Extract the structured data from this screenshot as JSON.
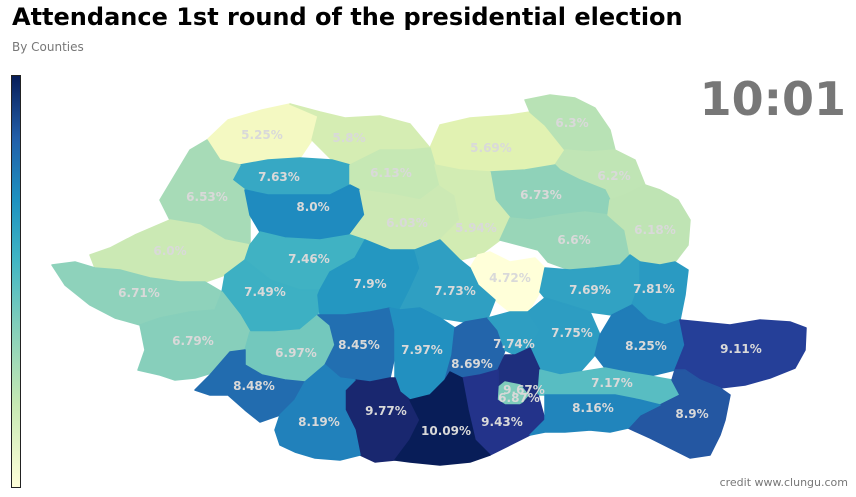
{
  "header": {
    "title": "Attendance 1st round of the presidential election",
    "subtitle": "By Counties",
    "time": "10:01"
  },
  "footer": {
    "credit": "credit www.clungu.com"
  },
  "legend": {
    "colormap": "YlGnBu",
    "colors": [
      "#ffffd9",
      "#c7e9b4",
      "#7fcdbb",
      "#41b6c4",
      "#1d91c0",
      "#225ea8",
      "#081d58"
    ]
  },
  "map_data": {
    "region": "Romania",
    "unit": "%",
    "counties": [
      {
        "value": "5.25%",
        "color": "#f4f9c2"
      },
      {
        "value": "5.8%",
        "color": "#d5edb3"
      },
      {
        "value": "5.69%",
        "color": "#e1f2b2"
      },
      {
        "value": "6.3%",
        "color": "#b8e2b5"
      },
      {
        "value": "6.2%",
        "color": "#c0e5b5"
      },
      {
        "value": "7.63%",
        "color": "#37a8c4"
      },
      {
        "value": "6.13%",
        "color": "#c6e8b4"
      },
      {
        "value": "6.53%",
        "color": "#a7dbb7"
      },
      {
        "value": "6.73%",
        "color": "#8fd2b9"
      },
      {
        "value": "8.0%",
        "color": "#1f8bbf"
      },
      {
        "value": "6.03%",
        "color": "#cce9b4"
      },
      {
        "value": "5.94%",
        "color": "#d2ecb3"
      },
      {
        "value": "6.6%",
        "color": "#99d6b8"
      },
      {
        "value": "6.18%",
        "color": "#bfe4b4"
      },
      {
        "value": "6.0%",
        "color": "#cbe9b4"
      },
      {
        "value": "7.46%",
        "color": "#40b2c3"
      },
      {
        "value": "4.72%",
        "color": "#ffffd9"
      },
      {
        "value": "6.71%",
        "color": "#8ed2bb"
      },
      {
        "value": "7.49%",
        "color": "#3db0c3"
      },
      {
        "value": "7.9%",
        "color": "#2497c1"
      },
      {
        "value": "7.73%",
        "color": "#2f9fc2"
      },
      {
        "value": "7.69%",
        "color": "#31a2c3"
      },
      {
        "value": "7.81%",
        "color": "#2a9ac2"
      },
      {
        "value": "6.79%",
        "color": "#87cfbb"
      },
      {
        "value": "6.97%",
        "color": "#73c8bd"
      },
      {
        "value": "8.45%",
        "color": "#226fb1"
      },
      {
        "value": "7.97%",
        "color": "#2290c0"
      },
      {
        "value": "8.69%",
        "color": "#2365ab"
      },
      {
        "value": "7.74%",
        "color": "#2e9ec2"
      },
      {
        "value": "7.75%",
        "color": "#2d9dc2"
      },
      {
        "value": "8.25%",
        "color": "#207db8"
      },
      {
        "value": "9.11%",
        "color": "#253f98"
      },
      {
        "value": "8.48%",
        "color": "#226caf"
      },
      {
        "value": "9.67%",
        "color": "#1e2f7e"
      },
      {
        "value": "6.87%",
        "color": "#7fccbb"
      },
      {
        "value": "7.17%",
        "color": "#58bdc2"
      },
      {
        "value": "9.77%",
        "color": "#19276f"
      },
      {
        "value": "9.43%",
        "color": "#23338a"
      },
      {
        "value": "8.9%",
        "color": "#2457a2"
      },
      {
        "value": "8.19%",
        "color": "#2181bb"
      },
      {
        "value": "10.09%",
        "color": "#081d58"
      },
      {
        "value": "8.16%",
        "color": "#2185bc"
      }
    ]
  }
}
